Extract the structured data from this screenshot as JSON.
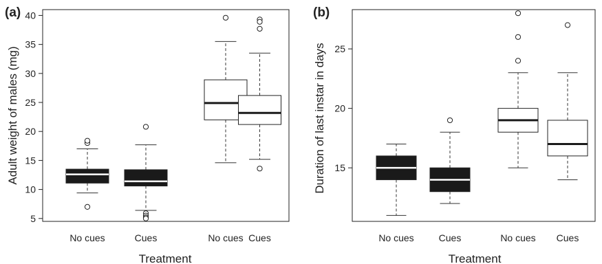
{
  "chart_data": [
    {
      "type": "box",
      "panel_label": "(a)",
      "ylabel": "Adult weight of males (mg)",
      "xlabel": "Treatment",
      "ylim": [
        4.5,
        41
      ],
      "y_ticks": [
        5,
        10,
        15,
        20,
        25,
        30,
        35,
        40
      ],
      "grid": false,
      "categories": [
        "No cues",
        "Cues",
        "No cues",
        "Cues"
      ],
      "boxes": [
        {
          "label": "No cues",
          "fill": "#1a1a1a",
          "median_color": "#ffffff",
          "whisker_low": 9.4,
          "q1": 11.1,
          "median": 12.6,
          "q3": 13.5,
          "whisker_high": 17.0,
          "outliers": [
            18.0,
            18.4,
            7.0
          ]
        },
        {
          "label": "Cues",
          "fill": "#1a1a1a",
          "median_color": "#ffffff",
          "whisker_low": 6.4,
          "q1": 10.6,
          "median": 11.4,
          "q3": 13.4,
          "whisker_high": 17.7,
          "outliers": [
            20.8,
            5.9,
            5.5,
            5.2,
            5.0
          ]
        },
        {
          "label": "No cues",
          "fill": "#ffffff",
          "median_color": "#1a1a1a",
          "whisker_low": 14.6,
          "q1": 22.0,
          "median": 24.9,
          "q3": 28.9,
          "whisker_high": 35.5,
          "outliers": [
            39.6
          ]
        },
        {
          "label": "Cues",
          "fill": "#ffffff",
          "median_color": "#1a1a1a",
          "whisker_low": 15.2,
          "q1": 21.2,
          "median": 23.2,
          "q3": 26.2,
          "whisker_high": 33.5,
          "outliers": [
            39.3,
            38.9,
            37.7,
            13.6
          ]
        }
      ]
    },
    {
      "type": "box",
      "panel_label": "(b)",
      "ylabel": "Duration of last instar in days",
      "xlabel": "Treatment",
      "ylim": [
        10.5,
        28.3
      ],
      "y_ticks": [
        15,
        20,
        25
      ],
      "grid": false,
      "categories": [
        "No cues",
        "Cues",
        "No cues",
        "Cues"
      ],
      "boxes": [
        {
          "label": "No cues",
          "fill": "#1a1a1a",
          "median_color": "#ffffff",
          "whisker_low": 11,
          "q1": 14,
          "median": 15,
          "q3": 16,
          "whisker_high": 17,
          "outliers": []
        },
        {
          "label": "Cues",
          "fill": "#1a1a1a",
          "median_color": "#ffffff",
          "whisker_low": 12,
          "q1": 13,
          "median": 14,
          "q3": 15,
          "whisker_high": 18,
          "outliers": [
            19
          ]
        },
        {
          "label": "No cues",
          "fill": "#ffffff",
          "median_color": "#1a1a1a",
          "whisker_low": 15,
          "q1": 18,
          "median": 19,
          "q3": 20,
          "whisker_high": 23,
          "outliers": [
            24,
            26,
            28
          ]
        },
        {
          "label": "Cues",
          "fill": "#ffffff",
          "median_color": "#1a1a1a",
          "whisker_low": 14,
          "q1": 16,
          "median": 17,
          "q3": 19,
          "whisker_high": 23,
          "outliers": [
            27
          ]
        }
      ]
    }
  ]
}
